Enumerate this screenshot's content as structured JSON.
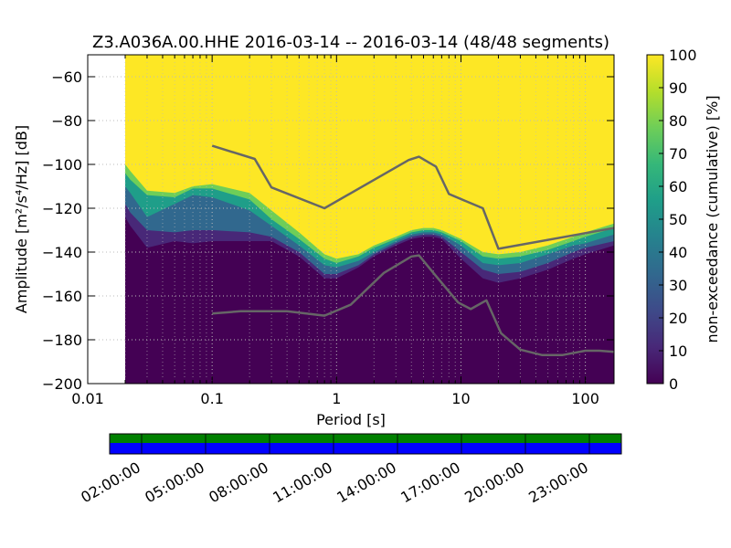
{
  "chart_data": [
    {
      "type": "heatmap",
      "title": "Z3.A036A.00.HHE   2016-03-14 -- 2016-03-14  (48/48 segments)",
      "xlabel": "Period [s]",
      "ylabel": "Amplitude [m²/s⁴/Hz] [dB]",
      "x_scale": "log",
      "xlim": [
        0.01,
        170
      ],
      "ylim": [
        -200,
        -50
      ],
      "x_ticks": [
        "0.01",
        "0.1",
        "1",
        "10",
        "100"
      ],
      "y_ticks": [
        "−60",
        "−80",
        "−100",
        "−120",
        "−140",
        "−160",
        "−180",
        "−200"
      ],
      "x_tick_values": [
        0.01,
        0.1,
        1,
        10,
        100
      ],
      "y_tick_values": [
        -60,
        -80,
        -100,
        -120,
        -140,
        -160,
        -180,
        -200
      ],
      "grid": true,
      "data_start_period": 0.02,
      "colorbar": {
        "label": "non-exceedance (cumulative) [%]",
        "ticks": [
          "0",
          "10",
          "20",
          "30",
          "40",
          "50",
          "60",
          "70",
          "80",
          "90",
          "100"
        ],
        "tick_values": [
          0,
          10,
          20,
          30,
          40,
          50,
          60,
          70,
          80,
          90,
          100
        ],
        "range": [
          0,
          100
        ],
        "colormap": [
          "#440154",
          "#482878",
          "#3e4a89",
          "#31688e",
          "#26828e",
          "#1f9e89",
          "#35b779",
          "#6ece58",
          "#b5de2b",
          "#fde725"
        ]
      },
      "non_exceedance_bands": {
        "description_levels_percent": [
          0,
          10,
          50,
          90,
          100
        ],
        "period": [
          0.02,
          0.022,
          0.03,
          0.05,
          0.07,
          0.1,
          0.2,
          0.3,
          0.5,
          0.8,
          1,
          1.5,
          2,
          3,
          4,
          5,
          6,
          7,
          10,
          15,
          20,
          30,
          50,
          80,
          100,
          170
        ],
        "p0_db": [
          -124,
          -128,
          -138,
          -135,
          -136,
          -135,
          -135,
          -135,
          -142,
          -152,
          -152,
          -147,
          -142,
          -137,
          -134,
          -133,
          -133,
          -134,
          -143,
          -152,
          -154,
          -152,
          -148,
          -143,
          -141,
          -137
        ],
        "p10_db": [
          -118,
          -122,
          -130,
          -131,
          -130,
          -130,
          -131,
          -133,
          -140,
          -150,
          -150,
          -146,
          -141,
          -136,
          -133,
          -132,
          -132,
          -133,
          -140,
          -148,
          -150,
          -149,
          -145,
          -140,
          -138,
          -135
        ],
        "p50_db": [
          -110,
          -113,
          -124,
          -118,
          -114,
          -115,
          -121,
          -128,
          -137,
          -146,
          -147,
          -144,
          -140,
          -135,
          -132,
          -131,
          -131,
          -132,
          -137,
          -145,
          -146,
          -145,
          -141,
          -137,
          -136,
          -132
        ],
        "p90_db": [
          -104,
          -107,
          -114,
          -115,
          -111,
          -111,
          -116,
          -125,
          -134,
          -143,
          -145,
          -142,
          -138,
          -134,
          -131,
          -130,
          -130,
          -131,
          -135,
          -142,
          -143,
          -142,
          -139,
          -135,
          -133,
          -129
        ],
        "p100_db": [
          -100,
          -103,
          -112,
          -113,
          -110,
          -109,
          -113,
          -121,
          -131,
          -141,
          -143,
          -141,
          -137,
          -133,
          -130,
          -129,
          -129,
          -130,
          -134,
          -140,
          -141,
          -140,
          -137,
          -133,
          -131,
          -127
        ]
      },
      "series": [
        {
          "name": "",
          "color": "#666666",
          "x": [
            0.1,
            0.22,
            0.3,
            0.8,
            3.8,
            4.6,
            6.3,
            8,
            15,
            20,
            170
          ],
          "y": [
            -91.5,
            -97.5,
            -110.5,
            -120,
            -98,
            -96.5,
            -101,
            -113.5,
            -120,
            -138.5,
            -129
          ]
        },
        {
          "name": "",
          "color": "#666666",
          "x": [
            0.1,
            0.17,
            0.4,
            0.8,
            1.3,
            2.4,
            4,
            4.6,
            6,
            9.5,
            12,
            16,
            21,
            30,
            45,
            65,
            100,
            130,
            170
          ],
          "y": [
            -168,
            -167,
            -167,
            -169,
            -164,
            -149.5,
            -142,
            -141.5,
            -149.5,
            -163,
            -166,
            -162,
            -177,
            -184.5,
            -187,
            -187,
            -185,
            -185,
            -185.5
          ]
        }
      ]
    },
    {
      "type": "timeline",
      "tick_labels": [
        "02:00:00",
        "05:00:00",
        "08:00:00",
        "11:00:00",
        "14:00:00",
        "17:00:00",
        "20:00:00",
        "23:00:00"
      ],
      "tick_hours": [
        2,
        5,
        8,
        11,
        14,
        17,
        20,
        23
      ],
      "range_hours": [
        0.5,
        24.5
      ],
      "series": [
        {
          "name": "",
          "color": "#008000"
        },
        {
          "name": "",
          "color": "#0000ff"
        }
      ]
    }
  ]
}
